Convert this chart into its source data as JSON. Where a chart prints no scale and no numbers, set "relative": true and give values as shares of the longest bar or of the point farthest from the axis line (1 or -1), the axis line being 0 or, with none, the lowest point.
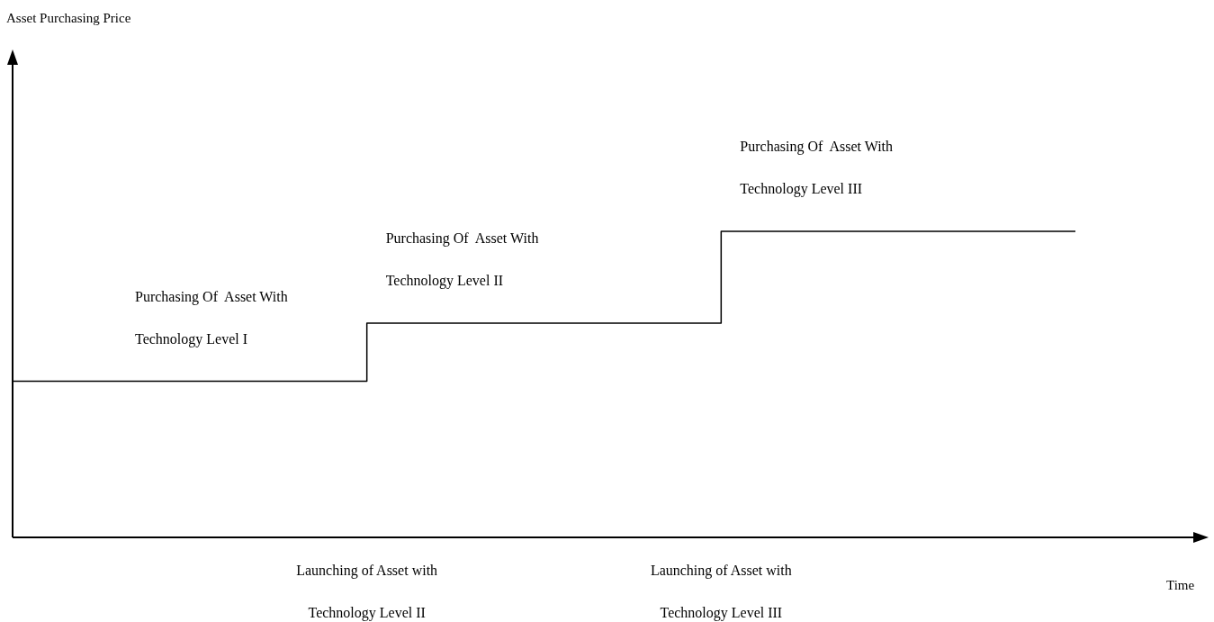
{
  "chart_data": {
    "type": "step",
    "relative": true,
    "xlabel": "Time",
    "categories": [
      null,
      "Launching of Asset with Technology Level II",
      "Launching of Asset with Technology Level III",
      null
    ],
    "series": [
      {
        "color": "#000000",
        "values": [
          0.51,
          0.7,
          1,
          1
        ]
      }
    ],
    "annotations": [
      "Purchasing Of  Asset With Technology Level I",
      "Purchasing Of  Asset With Technology Level II",
      "Purchasing Of  Asset With Technology Level III",
      "Asset Purchasing Price"
    ]
  }
}
